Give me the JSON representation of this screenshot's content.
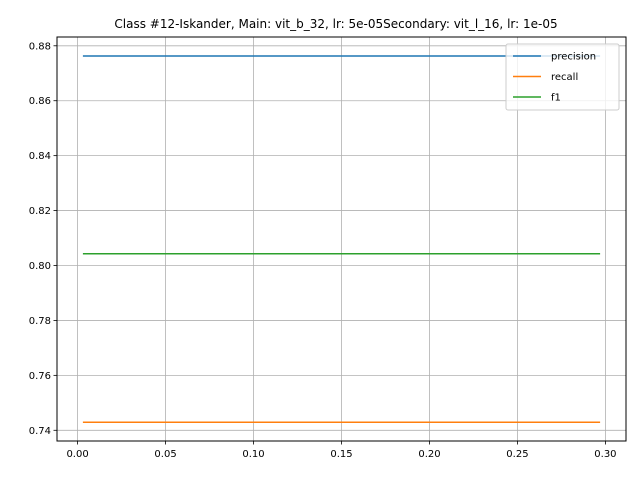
{
  "chart_data": {
    "type": "line",
    "title": "Class #12-Iskander, Main: vit_b_32, lr: 5e-05Secondary: vit_l_16, lr: 1e-05",
    "xlabel": "",
    "ylabel": "",
    "xlim": [
      -0.0117,
      0.3117
    ],
    "ylim": [
      0.7361,
      0.8832
    ],
    "x_ticks": [
      0.0,
      0.05,
      0.1,
      0.15,
      0.2,
      0.25,
      0.3
    ],
    "x_tick_labels": [
      "0.00",
      "0.05",
      "0.10",
      "0.15",
      "0.20",
      "0.25",
      "0.30"
    ],
    "y_ticks": [
      0.74,
      0.76,
      0.78,
      0.8,
      0.82,
      0.84,
      0.86,
      0.88
    ],
    "y_tick_labels": [
      "0.74",
      "0.76",
      "0.78",
      "0.80",
      "0.82",
      "0.84",
      "0.86",
      "0.88"
    ],
    "grid": true,
    "legend_position": "top-right",
    "series": [
      {
        "name": "precision",
        "color": "#1f77b4",
        "x": [
          0.003,
          0.297
        ],
        "values": [
          0.8763,
          0.8763
        ]
      },
      {
        "name": "recall",
        "color": "#ff7f0e",
        "x": [
          0.003,
          0.297
        ],
        "values": [
          0.7429,
          0.7429
        ]
      },
      {
        "name": "f1",
        "color": "#2ca02c",
        "x": [
          0.003,
          0.297
        ],
        "values": [
          0.8043,
          0.8043
        ]
      }
    ]
  }
}
